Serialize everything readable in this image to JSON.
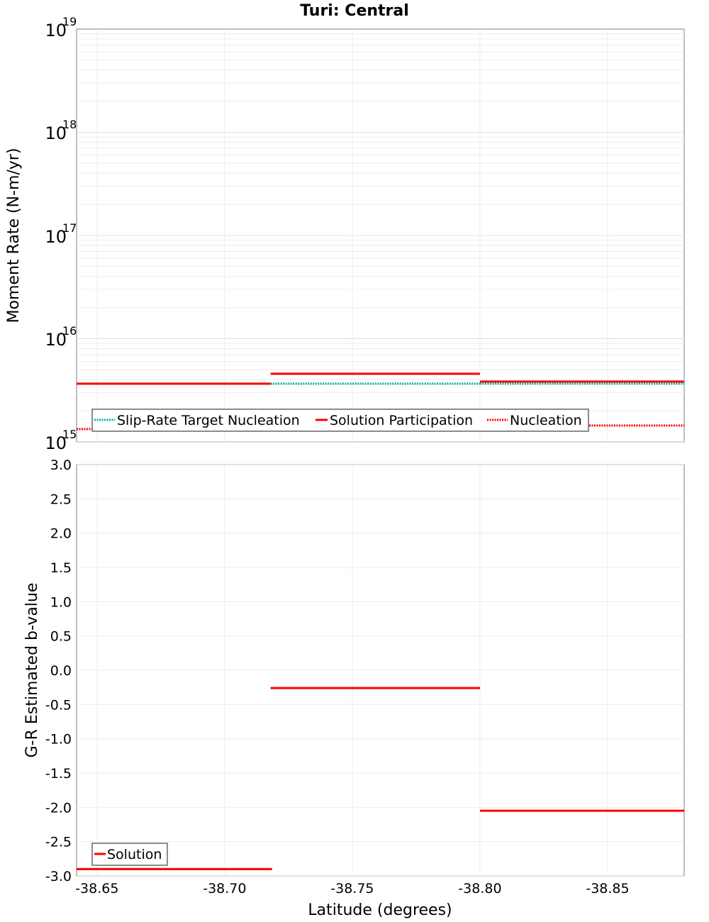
{
  "title": "Turi: Central",
  "chart_data": [
    {
      "type": "line",
      "title": "Turi: Central",
      "xlabel": "Latitude (degrees)",
      "ylabel": "Moment Rate (N-m/yr)",
      "yscale": "log",
      "ylim": [
        1000000000000000.0,
        1e+19
      ],
      "xlim": [
        -38.642,
        -38.88
      ],
      "ytick_labels": [
        "10^15",
        "10^16",
        "10^17",
        "10^18",
        "10^19"
      ],
      "legend": [
        "Slip-Rate Target Nucleation",
        "Solution Participation",
        "Nucleation"
      ],
      "legend_position": "lower left",
      "grid": true,
      "segments": [
        {
          "x_start": -38.642,
          "x_end": -38.718
        },
        {
          "x_start": -38.718,
          "x_end": -38.8
        },
        {
          "x_start": -38.8,
          "x_end": -38.88
        }
      ],
      "series": [
        {
          "name": "Slip-Rate Target Nucleation",
          "style": "dotted",
          "color": "#00aaaa",
          "values": [
            3660000000000000.0,
            3660000000000000.0,
            3660000000000000.0
          ]
        },
        {
          "name": "Solution Participation",
          "style": "solid",
          "color": "#ff0000",
          "values": [
            3660000000000000.0,
            4570000000000000.0,
            3840000000000000.0
          ]
        },
        {
          "name": "Nucleation",
          "style": "dotted",
          "color": "#ff0000",
          "values": [
            1330000000000000.0,
            1800000000000000.0,
            1440000000000000.0
          ]
        }
      ]
    },
    {
      "type": "line",
      "xlabel": "Latitude (degrees)",
      "ylabel": "G-R Estimated b-value",
      "ylim": [
        -3.0,
        3.0
      ],
      "xlim": [
        -38.642,
        -38.88
      ],
      "yticks": [
        "3.0",
        "2.5",
        "2.0",
        "1.5",
        "1.0",
        "0.5",
        "0.0",
        "-0.5",
        "-1.0",
        "-1.5",
        "-2.0",
        "-2.5",
        "-3.0"
      ],
      "xticks": [
        "-38.65",
        "-38.70",
        "-38.75",
        "-38.80",
        "-38.85"
      ],
      "legend": [
        "Solution"
      ],
      "legend_position": "lower left",
      "grid": true,
      "series": [
        {
          "name": "Solution",
          "style": "solid",
          "color": "#ff0000",
          "values": [
            -2.9,
            -0.26,
            -2.05
          ]
        }
      ]
    }
  ],
  "top": {
    "ylabel": "Moment Rate (N-m/yr)",
    "yticks": [
      {
        "base": "10",
        "exp": "19",
        "y": 41
      },
      {
        "base": "10",
        "exp": "18",
        "y": 186
      },
      {
        "base": "10",
        "exp": "17",
        "y": 332
      },
      {
        "base": "10",
        "exp": "16",
        "y": 477
      },
      {
        "base": "10",
        "exp": "15",
        "y": 623
      }
    ],
    "legend": {
      "l1": "Slip-Rate Target Nucleation",
      "l2": "Solution Participation",
      "l3": "Nucleation"
    }
  },
  "bottom": {
    "ylabel": "G-R Estimated b-value",
    "yticks": [
      "3.0",
      "2.5",
      "2.0",
      "1.5",
      "1.0",
      "0.5",
      "0.0",
      "-0.5",
      "-1.0",
      "-1.5",
      "-2.0",
      "-2.5",
      "-3.0"
    ],
    "legend": {
      "l1": "Solution"
    },
    "xticks": [
      "-38.65",
      "-38.70",
      "-38.75",
      "-38.80",
      "-38.85"
    ],
    "xlabel": "Latitude (degrees)"
  }
}
